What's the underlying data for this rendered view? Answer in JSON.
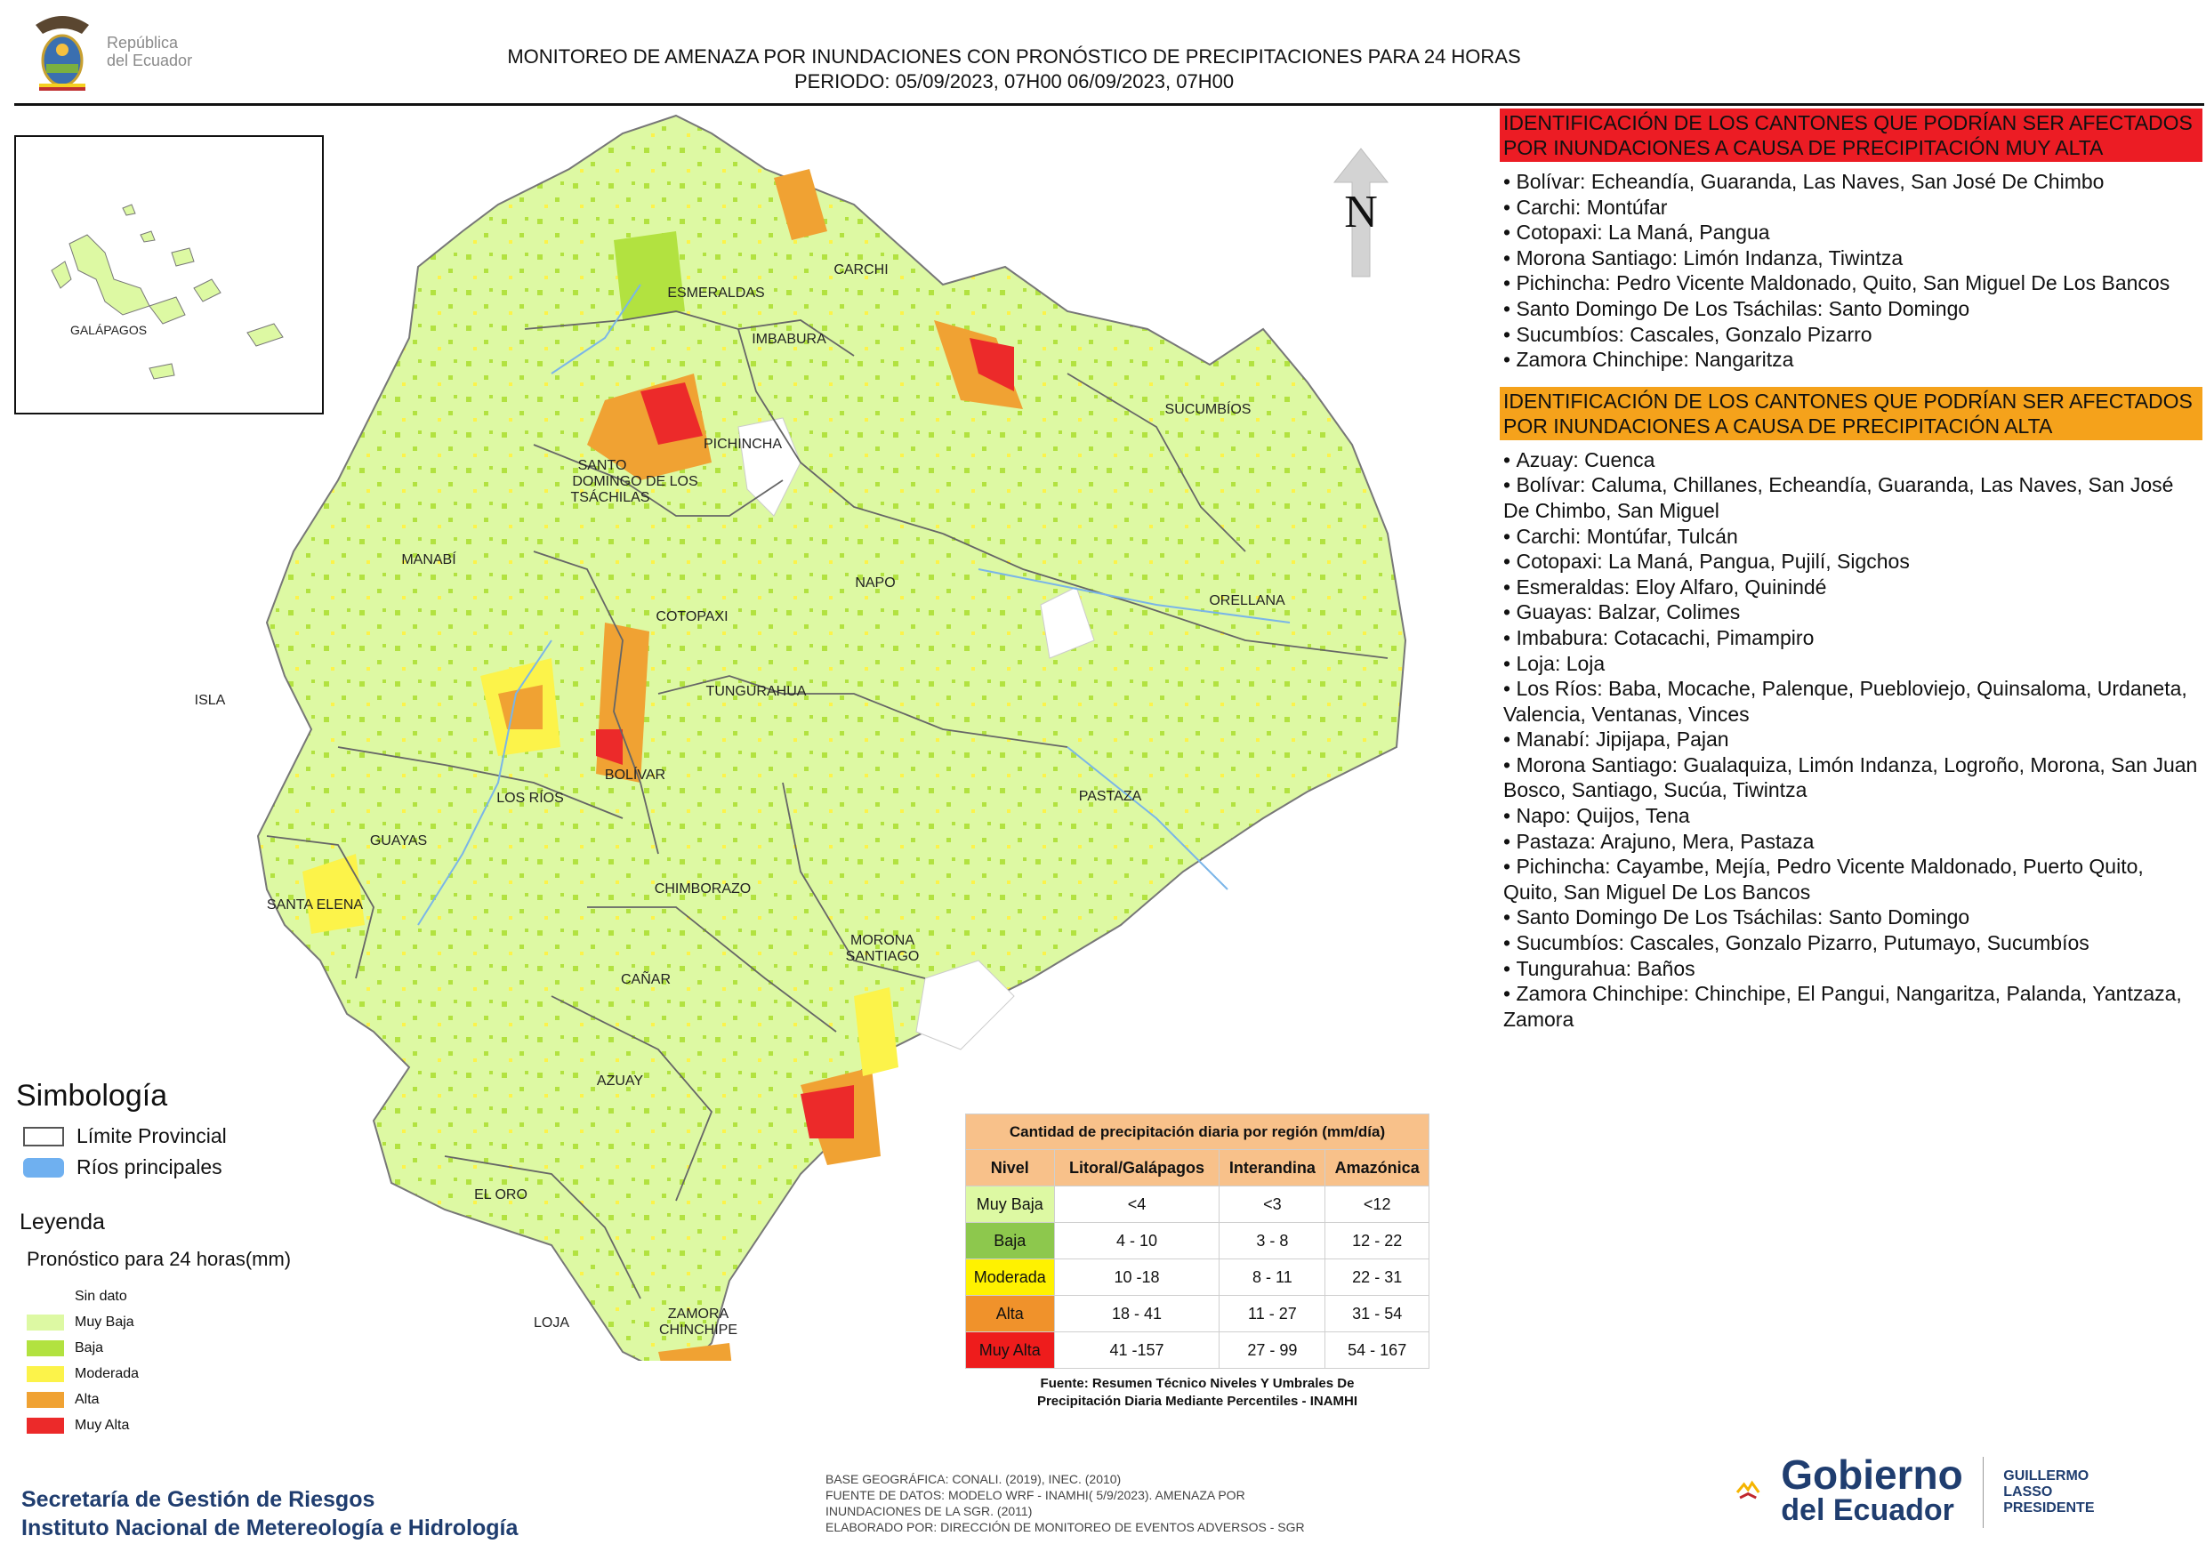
{
  "header": {
    "logo_text_line1": "República",
    "logo_text_line2": "del Ecuador",
    "title_line1": "MONITOREO DE AMENAZA POR INUNDACIONES  CON PRONÓSTICO DE  PRECIPITACIONES PARA 24 HORAS",
    "title_line2": "PERIODO: 05/09/2023, 07H00 06/09/2023, 07H00"
  },
  "compass": {
    "label": "N"
  },
  "map": {
    "provinces": [
      "CARCHI",
      "ESMERALDAS",
      "IMBABURA",
      "SUCUMBÍOS",
      "PICHINCHA",
      "SANTO",
      "DOMINGO DE LOS",
      "TSÁCHILAS",
      "MANABÍ",
      "NAPO",
      "ORELLANA",
      "COTOPAXI",
      "ISLA",
      "TUNGURAHUA",
      "BOLÍVAR",
      "LOS RÍOS",
      "PASTAZA",
      "GUAYAS",
      "CHIMBORAZO",
      "SANTA ELENA",
      "MORONA",
      "SANTIAGO",
      "CAÑAR",
      "AZUAY",
      "EL ORO",
      "ZAMORA",
      "CHINCHIPE",
      "LOJA"
    ],
    "inset_label": "GALÁPAGOS",
    "colors": {
      "muy_baja": "#ddf9a3",
      "baja": "#b2e240",
      "moderada": "#fcf34a",
      "alta": "#f0a233",
      "muy_alta": "#ec2a2a"
    }
  },
  "panel": {
    "muy_alta_header": "IDENTIFICACIÓN DE LOS CANTONES QUE PODRÍAN SER AFECTADOS POR INUNDACIONES  A CAUSA DE PRECIPITACIÓN MUY ALTA",
    "muy_alta_items": [
      "Bolívar: Echeandía, Guaranda, Las Naves, San José De Chimbo",
      "Carchi: Montúfar",
      "Cotopaxi: La Maná, Pangua",
      "Morona Santiago: Limón Indanza, Tiwintza",
      "Pichincha: Pedro Vicente Maldonado, Quito, San Miguel De Los Bancos",
      "Santo Domingo De Los Tsáchilas: Santo Domingo",
      "Sucumbíos: Cascales, Gonzalo Pizarro",
      "Zamora Chinchipe: Nangaritza"
    ],
    "alta_header": "IDENTIFICACIÓN DE LOS CANTONES QUE  PODRÍAN SER AFECTADOS POR INUNDACIONES  A CAUSA DE PRECIPITACIÓN ALTA",
    "alta_items": [
      "Azuay: Cuenca",
      "Bolívar: Caluma, Chillanes, Echeandía, Guaranda, Las Naves, San José De Chimbo, San Miguel",
      "Carchi: Montúfar, Tulcán",
      "Cotopaxi: La Maná, Pangua, Pujilí, Sigchos",
      "Esmeraldas: Eloy Alfaro, Quinindé",
      "Guayas: Balzar, Colimes",
      "Imbabura: Cotacachi, Pimampiro",
      "Loja: Loja",
      "Los Ríos: Baba, Mocache, Palenque, Puebloviejo, Quinsaloma, Urdaneta, Valencia, Ventanas, Vinces",
      "Manabí: Jipijapa, Pajan",
      "Morona Santiago: Gualaquiza, Limón Indanza, Logroño, Morona, San Juan Bosco, Santiago, Sucúa, Tiwintza",
      "Napo: Quijos, Tena",
      "Pastaza: Arajuno, Mera, Pastaza",
      "Pichincha: Cayambe, Mejía, Pedro Vicente Maldonado, Puerto Quito, Quito, San Miguel De Los Bancos",
      "Santo Domingo De Los Tsáchilas: Santo Domingo",
      "Sucumbíos: Cascales, Gonzalo Pizarro, Putumayo, Sucumbíos",
      "Tungurahua: Baños",
      "Zamora Chinchipe: Chinchipe, El Pangui, Nangaritza, Palanda, Yantzaza, Zamora"
    ]
  },
  "simbologia": {
    "title": "Simbología",
    "items": [
      {
        "label": "Límite Provincial"
      },
      {
        "label": "Ríos principales"
      }
    ]
  },
  "leyenda": {
    "title": "Leyenda",
    "subtitle": "Pronóstico para 24 horas(mm)",
    "items": [
      {
        "label": "Sin dato",
        "color": "#ffffff"
      },
      {
        "label": "Muy Baja",
        "color": "#ddf9a3"
      },
      {
        "label": "Baja",
        "color": "#b2e240"
      },
      {
        "label": "Moderada",
        "color": "#fcf34a"
      },
      {
        "label": "Alta",
        "color": "#f0a233"
      },
      {
        "label": "Muy Alta",
        "color": "#ec2a2a"
      }
    ]
  },
  "precip_table": {
    "caption": "Cantidad de precipitación diaria por región (mm/día)",
    "headers": [
      "Nivel",
      "Litoral/Galápagos",
      "Interandina",
      "Amazónica"
    ],
    "rows": [
      {
        "nivel": "Muy Baja",
        "color": "#ddf9a3",
        "values": [
          "<4",
          "<3",
          "<12"
        ]
      },
      {
        "nivel": "Baja",
        "color": "#8dc84d",
        "values": [
          "4 - 10",
          "3 - 8",
          "12 - 22"
        ]
      },
      {
        "nivel": "Moderada",
        "color": "#fff200",
        "values": [
          "10 -18",
          "8 - 11",
          "22 - 31"
        ]
      },
      {
        "nivel": "Alta",
        "color": "#f0922b",
        "values": [
          "18 - 41",
          "11 - 27",
          "31 - 54"
        ]
      },
      {
        "nivel": "Muy Alta",
        "color": "#ee1c1c",
        "values": [
          "41 -157",
          "27 - 99",
          "54 - 167"
        ]
      }
    ],
    "source_line1": "Fuente: Resumen Técnico Niveles Y Umbrales De",
    "source_line2": "Precipitación Diaria Mediante Percentiles - INAMHI"
  },
  "footer": {
    "org_line1": "Secretaría de Gestión de Riesgos",
    "org_line2": "Instituto Nacional de Metereología e Hidrología",
    "base_line1": "BASE GEOGRÁFICA: CONALI. (2019), INEC. (2010)",
    "base_line2": "FUENTE DE DATOS: MODELO WRF - INAMHI( 5/9/2023).  AMENAZA POR",
    "base_line3": "INUNDACIONES DE LA SGR. (2011)",
    "base_line4": "ELABORADO POR: DIRECCIÓN DE MONITOREO DE EVENTOS ADVERSOS - SGR",
    "gob_line1": "Gobierno",
    "gob_line2": "del Ecuador",
    "pres_line1": "GUILLERMO LASSO",
    "pres_line2": "PRESIDENTE"
  }
}
